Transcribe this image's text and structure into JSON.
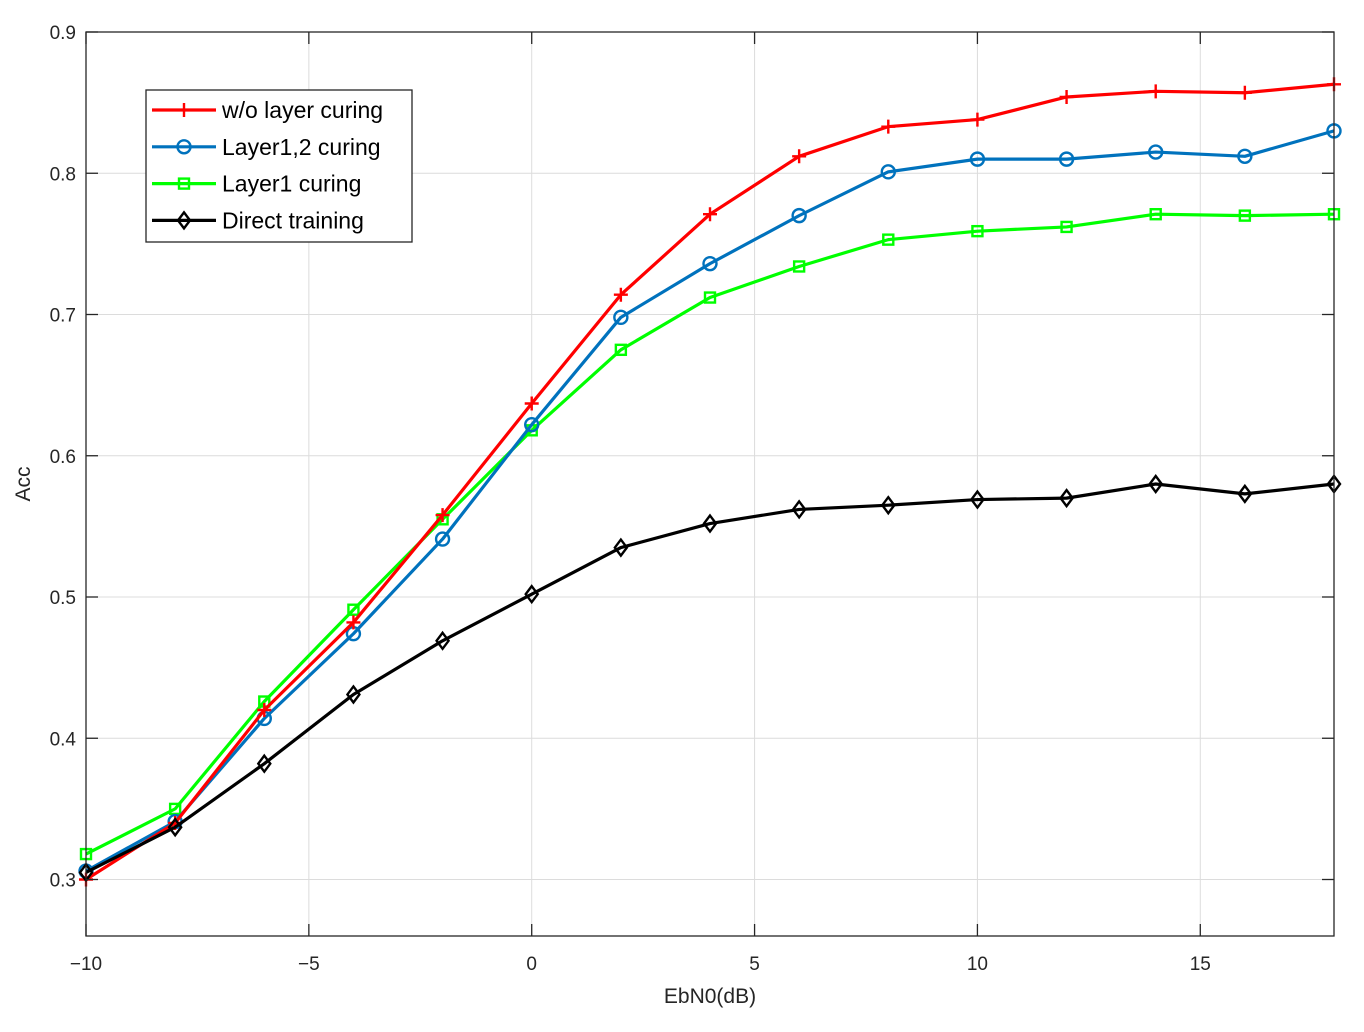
{
  "chart_data": {
    "type": "line",
    "title": "",
    "xlabel": "EbN0(dB)",
    "ylabel": "Acc",
    "xlim": [
      -10,
      18
    ],
    "ylim": [
      0.26,
      0.9
    ],
    "xticks": [
      -10,
      -5,
      0,
      5,
      10,
      15
    ],
    "xtick_labels": [
      "−10",
      "−5",
      "0",
      "5",
      "10",
      "15"
    ],
    "yticks": [
      0.3,
      0.4,
      0.5,
      0.6,
      0.7,
      0.8,
      0.9
    ],
    "ytick_labels": [
      "0.3",
      "0.4",
      "0.5",
      "0.6",
      "0.7",
      "0.8",
      "0.9"
    ],
    "grid": true,
    "legend_position": "top-left",
    "x": [
      -10,
      -8,
      -6,
      -4,
      -2,
      0,
      2,
      4,
      6,
      8,
      10,
      12,
      14,
      16,
      18
    ],
    "series": [
      {
        "name": "w/o layer curing",
        "color": "#ff0000",
        "marker": "plus",
        "values": [
          0.3,
          0.34,
          0.42,
          0.482,
          0.558,
          0.637,
          0.714,
          0.771,
          0.812,
          0.833,
          0.838,
          0.854,
          0.858,
          0.857,
          0.863
        ]
      },
      {
        "name": "Layer1,2 curing",
        "color": "#0072bd",
        "marker": "circle",
        "values": [
          0.306,
          0.341,
          0.414,
          0.474,
          0.541,
          0.622,
          0.698,
          0.736,
          0.77,
          0.801,
          0.81,
          0.81,
          0.815,
          0.812,
          0.83
        ]
      },
      {
        "name": "Layer1 curing",
        "color": "#00ff00",
        "marker": "square",
        "values": [
          0.318,
          0.35,
          0.426,
          0.491,
          0.555,
          0.618,
          0.675,
          0.712,
          0.734,
          0.753,
          0.759,
          0.762,
          0.771,
          0.77,
          0.771
        ]
      },
      {
        "name": "Direct training",
        "color": "#000000",
        "marker": "diamond",
        "values": [
          0.305,
          0.337,
          0.382,
          0.431,
          0.469,
          0.502,
          0.535,
          0.552,
          0.562,
          0.565,
          0.569,
          0.57,
          0.58,
          0.573,
          0.58
        ]
      }
    ]
  }
}
